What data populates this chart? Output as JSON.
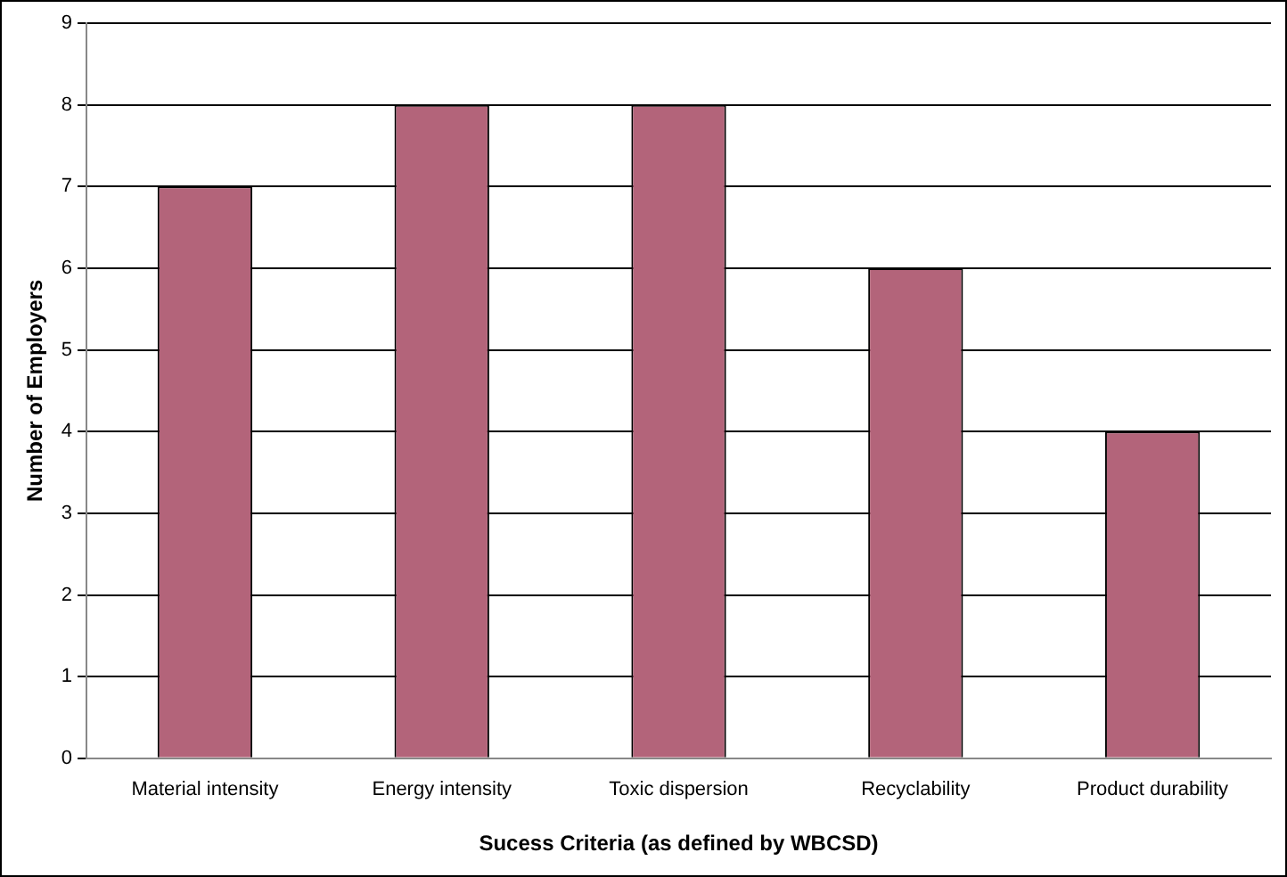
{
  "chart_data": {
    "type": "bar",
    "xlabel": "Sucess Criteria (as defined by WBCSD)",
    "ylabel": "Number of Employers",
    "categories": [
      "Material intensity",
      "Energy intensity",
      "Toxic dispersion",
      "Recyclability",
      "Product durability"
    ],
    "values": [
      7,
      8,
      8,
      6,
      4
    ],
    "color": "#b3647a",
    "ylim": [
      0,
      9
    ],
    "yticks": [
      0,
      1,
      2,
      3,
      4,
      5,
      6,
      7,
      8,
      9
    ],
    "grid": "y"
  }
}
